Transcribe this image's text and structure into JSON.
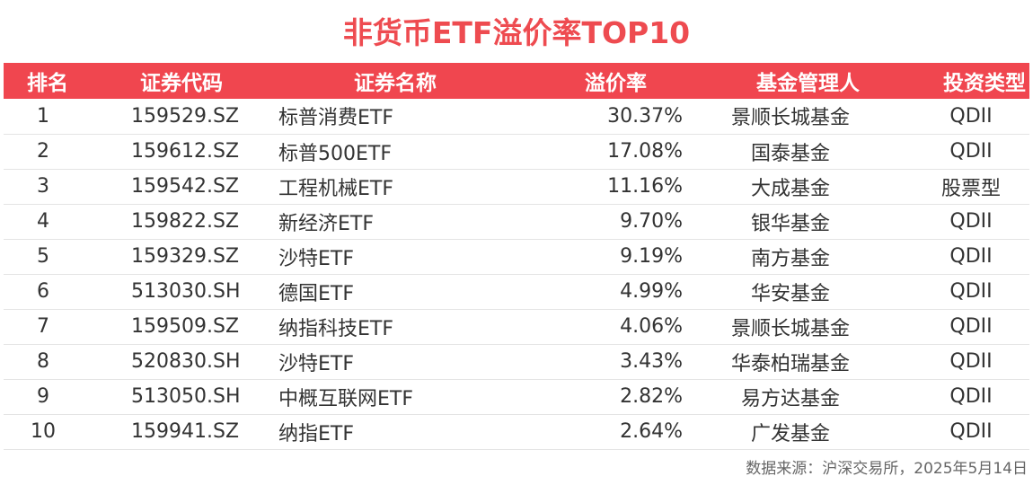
{
  "title": "非货币ETF溢价率TOP10",
  "table": {
    "headers": {
      "rank": "排名",
      "code": "证券代码",
      "name": "证券名称",
      "premium": "溢价率",
      "manager": "基金管理人",
      "type": "投资类型"
    },
    "rows": [
      {
        "rank": "1",
        "code": "159529.SZ",
        "name": "标普消费ETF",
        "premium": "30.37%",
        "manager": "景顺长城基金",
        "type": "QDII"
      },
      {
        "rank": "2",
        "code": "159612.SZ",
        "name": "标普500ETF",
        "premium": "17.08%",
        "manager": "国泰基金",
        "type": "QDII"
      },
      {
        "rank": "3",
        "code": "159542.SZ",
        "name": "工程机械ETF",
        "premium": "11.16%",
        "manager": "大成基金",
        "type": "股票型"
      },
      {
        "rank": "4",
        "code": "159822.SZ",
        "name": "新经济ETF",
        "premium": "9.70%",
        "manager": "银华基金",
        "type": "QDII"
      },
      {
        "rank": "5",
        "code": "159329.SZ",
        "name": "沙特ETF",
        "premium": "9.19%",
        "manager": "南方基金",
        "type": "QDII"
      },
      {
        "rank": "6",
        "code": "513030.SH",
        "name": "德国ETF",
        "premium": "4.99%",
        "manager": "华安基金",
        "type": "QDII"
      },
      {
        "rank": "7",
        "code": "159509.SZ",
        "name": "纳指科技ETF",
        "premium": "4.06%",
        "manager": "景顺长城基金",
        "type": "QDII"
      },
      {
        "rank": "8",
        "code": "520830.SH",
        "name": "沙特ETF",
        "premium": "3.43%",
        "manager": "华泰柏瑞基金",
        "type": "QDII"
      },
      {
        "rank": "9",
        "code": "513050.SH",
        "name": "中概互联网ETF",
        "premium": "2.82%",
        "manager": "易方达基金",
        "type": "QDII"
      },
      {
        "rank": "10",
        "code": "159941.SZ",
        "name": "纳指ETF",
        "premium": "2.64%",
        "manager": "广发基金",
        "type": "QDII"
      }
    ]
  },
  "footer": {
    "source": "数据来源：沪深交易所，2025年5月14日"
  },
  "colors": {
    "accent": "#f0464f",
    "title": "#ee4b50"
  }
}
